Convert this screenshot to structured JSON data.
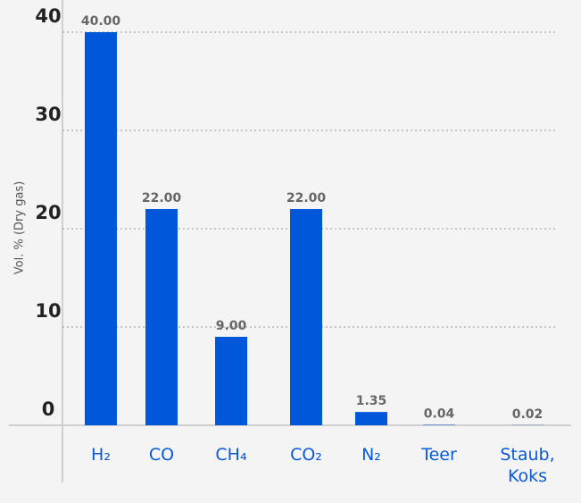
{
  "chart_data": {
    "type": "bar",
    "y_label": "Vol. % (Dry gas)",
    "categories": [
      "H₂",
      "CO",
      "CH₄",
      "CO₂",
      "N₂",
      "Teer",
      "Staub, Koks"
    ],
    "values": [
      40,
      22,
      9,
      22,
      1.35,
      0.04,
      0.02
    ],
    "value_labels": [
      "40.00",
      "22.00",
      "9.00",
      "22.00",
      "1.35",
      "0.04",
      "0.02"
    ],
    "color": "#0057d9",
    "ylim": [
      0,
      40
    ],
    "yticks": [
      0,
      10,
      20,
      30,
      40
    ],
    "grid": true
  }
}
